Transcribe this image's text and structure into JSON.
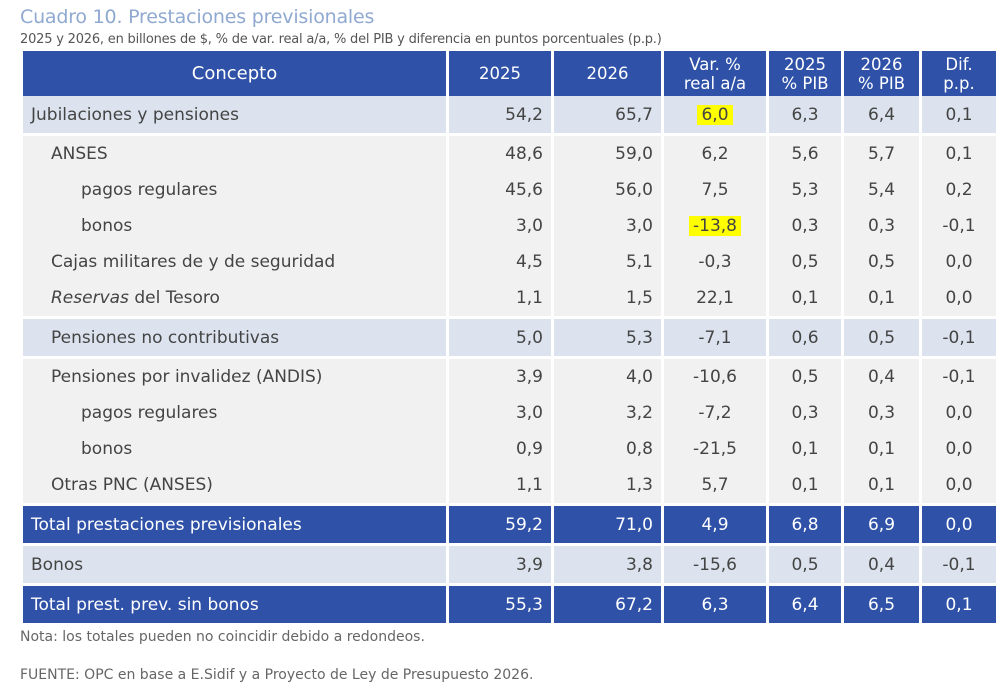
{
  "title": "Cuadro 10. Prestaciones previsionales",
  "subtitle": "2025 y 2026, en billones de $, % de var. real a/a, % del PIB y diferencia en puntos porcentuales (p.p.)",
  "headers": [
    "Concepto",
    "2025",
    "2026",
    "Var. %\nreal a/a",
    "2025\n% PIB",
    "2026\n% PIB",
    "Dif.\np.p."
  ],
  "rows": [
    {
      "concepto": "Jubilaciones y pensiones",
      "v": [
        "54,2",
        "65,7",
        "6,0",
        "6,3",
        "6,4",
        "0,1"
      ]
    },
    {
      "concepto": "ANSES",
      "v": [
        "48,6",
        "59,0",
        "6,2",
        "5,6",
        "5,7",
        "0,1"
      ]
    },
    {
      "concepto": "pagos regulares",
      "v": [
        "45,6",
        "56,0",
        "7,5",
        "5,3",
        "5,4",
        "0,2"
      ]
    },
    {
      "concepto": "bonos",
      "v": [
        "3,0",
        "3,0",
        "-13,8",
        "0,3",
        "0,3",
        "-0,1"
      ]
    },
    {
      "concepto": "Cajas militares de y de seguridad",
      "v": [
        "4,5",
        "5,1",
        "-0,3",
        "0,5",
        "0,5",
        "0,0"
      ]
    },
    {
      "concepto_italic": "Reservas",
      "concepto": " del Tesoro",
      "v": [
        "1,1",
        "1,5",
        "22,1",
        "0,1",
        "0,1",
        "0,0"
      ]
    },
    {
      "concepto": "Pensiones no contributivas",
      "v": [
        "5,0",
        "5,3",
        "-7,1",
        "0,6",
        "0,5",
        "-0,1"
      ]
    },
    {
      "concepto": "Pensiones por invalidez (ANDIS)",
      "v": [
        "3,9",
        "4,0",
        "-10,6",
        "0,5",
        "0,4",
        "-0,1"
      ]
    },
    {
      "concepto": "pagos regulares",
      "v": [
        "3,0",
        "3,2",
        "-7,2",
        "0,3",
        "0,3",
        "0,0"
      ]
    },
    {
      "concepto": "bonos",
      "v": [
        "0,9",
        "0,8",
        "-21,5",
        "0,1",
        "0,1",
        "0,0"
      ]
    },
    {
      "concepto": "Otras PNC (ANSES)",
      "v": [
        "1,1",
        "1,3",
        "5,7",
        "0,1",
        "0,1",
        "0,0"
      ]
    },
    {
      "concepto": "Total prestaciones previsionales",
      "v": [
        "59,2",
        "71,0",
        "4,9",
        "6,8",
        "6,9",
        "0,0"
      ]
    },
    {
      "concepto": "Bonos",
      "v": [
        "3,9",
        "3,8",
        "-15,6",
        "0,5",
        "0,4",
        "-0,1"
      ]
    },
    {
      "concepto": "Total prest. prev. sin bonos",
      "v": [
        "55,3",
        "67,2",
        "6,3",
        "6,4",
        "6,5",
        "0,1"
      ]
    }
  ],
  "note": "Nota: los totales pueden no coincidir debido a redondeos.",
  "source": "FUENTE: OPC en base a E.Sidif y a Proyecto de Ley de Presupuesto 2026.",
  "colors": {
    "header_blue": "#2f52a8",
    "light_row": "#dce3ee",
    "gray_row": "#f1f1f1",
    "highlight": "#ffff00"
  }
}
